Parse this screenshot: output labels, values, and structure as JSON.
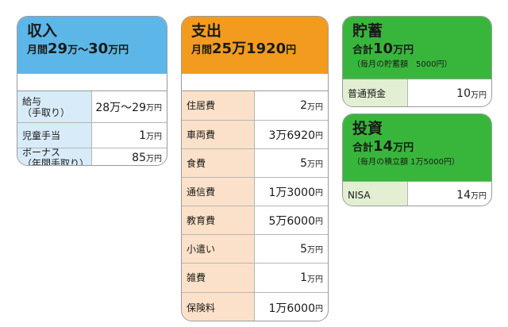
{
  "income": {
    "title": "収入",
    "total_prefix": "月間",
    "total_big1": "29",
    "total_mid1": "万～",
    "total_big2": "30",
    "total_unit": "万円",
    "rows": [
      {
        "label1": "給与",
        "label2": "（手取り）",
        "value_num": "28万～29",
        "value_unit": "万円"
      },
      {
        "label1": "児童手当",
        "label2": "",
        "value_num": "1",
        "value_unit": "万円"
      },
      {
        "label1": "ボーナス",
        "label2": "（年間手取り）",
        "value_num": "85",
        "value_unit": "万円"
      }
    ]
  },
  "expense": {
    "title": "支出",
    "total_prefix": "月間",
    "total_big": "25万1920",
    "total_unit": "円",
    "rows": [
      {
        "label": "住居費",
        "value_num": "2",
        "value_unit": "万円"
      },
      {
        "label": "車両費",
        "value_num": "3万6920",
        "value_unit": "円"
      },
      {
        "label": "食費",
        "value_num": "5",
        "value_unit": "万円"
      },
      {
        "label": "通信費",
        "value_num": "1万3000",
        "value_unit": "円"
      },
      {
        "label": "教育費",
        "value_num": "5万6000",
        "value_unit": "円"
      },
      {
        "label": "小遣い",
        "value_num": "5",
        "value_unit": "万円"
      },
      {
        "label": "雑費",
        "value_num": "1",
        "value_unit": "万円"
      },
      {
        "label": "保険料",
        "value_num": "1万6000",
        "value_unit": "円"
      }
    ]
  },
  "savings": {
    "title": "貯蓄",
    "total_prefix": "合計",
    "total_big": "10",
    "total_unit": "万円",
    "sub": "（毎月の貯蓄額　5000円）",
    "rows": [
      {
        "label": "普通預金",
        "value_num": "10",
        "value_unit": "万円"
      }
    ]
  },
  "invest": {
    "title": "投資",
    "total_prefix": "合計",
    "total_big": "14",
    "total_unit": "万円",
    "sub": "（毎月の積立額 1万5000円）",
    "rows": [
      {
        "label": "NISA",
        "value_num": "14",
        "value_unit": "万円"
      }
    ]
  },
  "colors": {
    "income_header": "#5db6e8",
    "income_label_bg": "#d8ebf8",
    "expense_header": "#f39b1f",
    "expense_label_bg": "#fbe1c9",
    "savings_header": "#38b63c",
    "savings_label_bg": "#e2efd3"
  }
}
